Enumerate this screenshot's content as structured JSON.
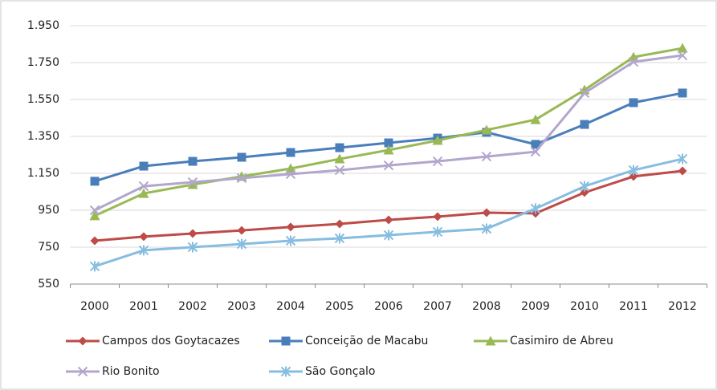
{
  "chart_data": {
    "type": "line",
    "categories": [
      "2000",
      "2001",
      "2002",
      "2003",
      "2004",
      "2005",
      "2006",
      "2007",
      "2008",
      "2009",
      "2010",
      "2011",
      "2012"
    ],
    "series": [
      {
        "name": "Campos dos Goytacazes",
        "color": "#be4b48",
        "marker": "diamond",
        "values": [
          785,
          807,
          824,
          841,
          859,
          876,
          898,
          915,
          937,
          933,
          1046,
          1133,
          1163
        ]
      },
      {
        "name": "Conceição de Macabu",
        "color": "#4a7ebb",
        "marker": "square",
        "values": [
          1107,
          1189,
          1215,
          1237,
          1263,
          1289,
          1315,
          1341,
          1372,
          1307,
          1415,
          1533,
          1585
        ]
      },
      {
        "name": "Casimiro de Abreu",
        "color": "#98b954",
        "marker": "triangle",
        "values": [
          920,
          1041,
          1089,
          1133,
          1176,
          1228,
          1276,
          1328,
          1385,
          1441,
          1602,
          1780,
          1828
        ]
      },
      {
        "name": "Rio Bonito",
        "color": "#b3a6cc",
        "marker": "x",
        "values": [
          950,
          1080,
          1102,
          1124,
          1146,
          1167,
          1193,
          1215,
          1241,
          1267,
          1585,
          1754,
          1789
        ]
      },
      {
        "name": "São Gonçalo",
        "color": "#86bde0",
        "marker": "star",
        "values": [
          646,
          733,
          750,
          767,
          785,
          798,
          815,
          833,
          850,
          959,
          1080,
          1167,
          1228
        ]
      }
    ],
    "ylim": [
      550,
      1950
    ],
    "yticks": [
      550,
      750,
      950,
      {
        "value": 1150,
        "label": "1.150"
      },
      {
        "value": 1350,
        "label": "1.350"
      },
      {
        "value": 1550,
        "label": "1.550"
      },
      {
        "value": 1750,
        "label": "1.750"
      },
      {
        "value": 1950,
        "label": "1.950"
      }
    ],
    "grid": true,
    "legend": "bottom"
  }
}
